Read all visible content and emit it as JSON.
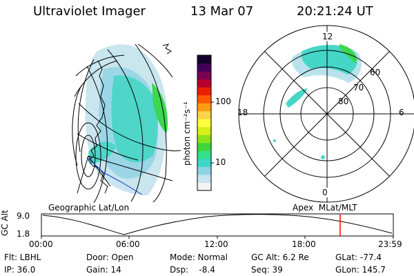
{
  "header": {
    "title": "Ultraviolet Imager",
    "date": "13 Mar 07",
    "time": "20:21:24 UT"
  },
  "colorbar": {
    "label": "photon cm⁻²s⁻¹",
    "ticks": [
      "100",
      "10"
    ],
    "scale": "log",
    "colors": [
      "#f4f4f4",
      "#c8e4ee",
      "#8fd2e4",
      "#3fd6c6",
      "#34e08a",
      "#3ed63a",
      "#8ce21a",
      "#d8f01a",
      "#ffff40",
      "#ffd24a",
      "#ff9c10",
      "#ff5a00",
      "#e82000",
      "#b4002c",
      "#7a0050",
      "#40005a",
      "#14002a"
    ]
  },
  "geo_panel": {
    "label": "Geographic Lat/Lon"
  },
  "polar_panel": {
    "label": "Apex  MLat/MLT",
    "mlt_labels": {
      "top": "12",
      "left": "18",
      "right": "6",
      "bottom": "0"
    },
    "lat_labels": [
      "60",
      "70",
      "80"
    ]
  },
  "altitude_strip": {
    "ylabel": "GC Alt",
    "yticks": [
      "9.0",
      "1.8"
    ],
    "xticks": [
      "00:00",
      "06:00",
      "12:00",
      "18:00",
      "23:59"
    ],
    "marker_color": "#ff0000",
    "marker_time": "20:21"
  },
  "info": {
    "row1": {
      "flt": "Flt: LBHL",
      "door": "Door: Open",
      "mode": "Mode: Normal",
      "gc_alt": "GC Alt: 6.2 Re",
      "glat": "GLat: -77.4"
    },
    "row2": {
      "ip": "IP: 36.0",
      "gain": "Gain: 14",
      "dsp": "Dsp:    -8.4",
      "seq": "Seq: 39",
      "glon": "GLon: 145.7"
    }
  }
}
